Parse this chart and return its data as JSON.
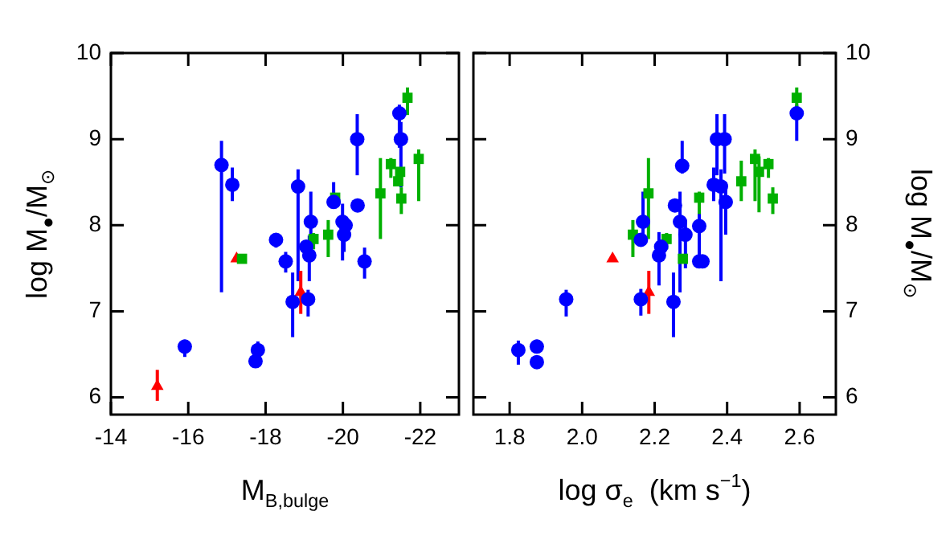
{
  "chart_data": [
    {
      "type": "scatter",
      "xlabel": "M$_{B,bulge}$",
      "ylabel": "log M$_{●}$/M$_{⊙}$",
      "xlim": [
        -14,
        -23
      ],
      "xticks": [
        -14,
        -16,
        -18,
        -20,
        -22
      ],
      "ylim": [
        5.8,
        10
      ],
      "yticks": [
        6,
        7,
        8,
        9,
        10
      ],
      "series": [
        {
          "type": "scatter",
          "marker": "circle",
          "color": "#0000ff",
          "x": [
            -16.86,
            -17.14,
            -15.91,
            -17.8,
            -17.74,
            -18.27,
            -18.52,
            -18.84,
            -18.7,
            -19.05,
            -19.13,
            -19.17,
            -19.1,
            -19.76,
            -19.99,
            -20.07,
            -20.03,
            -20.37,
            -20.38,
            -20.56,
            -21.46,
            -21.5
          ],
          "values": [
            8.7,
            8.47,
            6.59,
            6.55,
            6.42,
            7.83,
            7.58,
            8.45,
            7.11,
            7.75,
            7.65,
            8.04,
            7.14,
            8.27,
            8.04,
            8.0,
            7.89,
            9.0,
            8.23,
            7.58,
            9.3,
            9.0
          ],
          "errors": [
            [
              7.22,
              8.98
            ],
            [
              8.28,
              8.67
            ],
            [
              6.47,
              6.67
            ],
            [
              6.47,
              6.65
            ],
            null,
            [
              7.74,
              7.89
            ],
            [
              7.45,
              7.69
            ],
            [
              7.35,
              8.65
            ],
            [
              6.7,
              7.45
            ],
            null,
            [
              7.35,
              7.88
            ],
            [
              7.66,
              8.39
            ],
            [
              6.94,
              7.25
            ],
            [
              8.22,
              8.5
            ],
            [
              7.59,
              8.25
            ],
            null,
            [
              7.69,
              8.0
            ],
            [
              8.58,
              9.29
            ],
            null,
            [
              7.38,
              7.74
            ],
            [
              8.9,
              9.4
            ],
            [
              8.44,
              9.2
            ]
          ]
        },
        {
          "type": "scatter",
          "marker": "square",
          "color": "#00b000",
          "x": [
            -17.39,
            -19.24,
            -19.62,
            -19.8,
            -20.97,
            -21.24,
            -21.48,
            -21.43,
            -21.51,
            -21.67,
            -21.96
          ],
          "values": [
            7.61,
            7.84,
            7.89,
            8.32,
            8.37,
            8.71,
            8.62,
            8.51,
            8.31,
            9.48,
            8.77
          ],
          "errors": [
            null,
            [
              7.72,
              7.91
            ],
            [
              7.63,
              8.06
            ],
            null,
            [
              7.84,
              8.78
            ],
            [
              8.55,
              8.78
            ],
            null,
            null,
            [
              8.13,
              8.44
            ],
            [
              9.28,
              9.6
            ],
            [
              8.28,
              8.88
            ]
          ]
        },
        {
          "type": "scatter",
          "marker": "triangle",
          "color": "#ff0000",
          "x": [
            -15.2,
            -17.25,
            -18.91
          ],
          "values": [
            6.13,
            7.61,
            7.22
          ],
          "errors": [
            [
              5.96,
              6.32
            ],
            null,
            [
              6.97,
              7.47
            ]
          ]
        }
      ]
    },
    {
      "type": "scatter",
      "xlabel": "log σ$_{e}$  (km s$^{−1}$)",
      "y2label": "log M$_{●}$/M$_{⊙}$",
      "xlim": [
        1.7,
        2.7
      ],
      "xticks": [
        {
          "value": 1.8,
          "label": "1.8"
        },
        {
          "value": 2.0,
          "label": "2.0"
        },
        {
          "value": 2.2,
          "label": "2.2"
        },
        {
          "value": 2.4,
          "label": "2.4"
        },
        {
          "value": 2.6,
          "label": "2.6"
        }
      ],
      "y2lim": [
        5.8,
        10
      ],
      "y2ticks": [
        6,
        7,
        8,
        9,
        10
      ],
      "series": [
        {
          "type": "scatter",
          "axis": "y2",
          "marker": "circle",
          "color": "#0000ff",
          "x": [
            1.824,
            1.875,
            1.875,
            1.956,
            2.162,
            2.162,
            2.168,
            2.212,
            2.218,
            2.252,
            2.256,
            2.27,
            2.276,
            2.285,
            2.323,
            2.323,
            2.332,
            2.363,
            2.372,
            2.393,
            2.383,
            2.396,
            2.592
          ],
          "values": [
            6.55,
            6.59,
            6.41,
            7.14,
            7.14,
            7.83,
            8.04,
            7.65,
            7.75,
            7.11,
            8.23,
            8.04,
            8.69,
            7.89,
            7.99,
            7.58,
            7.58,
            8.47,
            9.0,
            9.0,
            8.45,
            8.27,
            9.3
          ],
          "errors": [
            [
              6.38,
              6.66
            ],
            [
              6.55,
              6.67
            ],
            null,
            [
              6.94,
              7.25
            ],
            [
              6.95,
              7.26
            ],
            null,
            [
              7.81,
              8.39
            ],
            [
              7.3,
              7.92
            ],
            null,
            [
              6.7,
              7.45
            ],
            null,
            [
              7.22,
              8.39
            ],
            [
              8.6,
              8.98
            ],
            [
              7.5,
              8.06
            ],
            [
              7.58,
              8.19
            ],
            null,
            null,
            [
              8.28,
              8.67
            ],
            [
              8.58,
              9.29
            ],
            [
              8.6,
              9.29
            ],
            [
              7.35,
              8.65
            ],
            [
              7.89,
              8.5
            ],
            [
              8.98,
              9.4
            ]
          ]
        },
        {
          "type": "scatter",
          "axis": "y2",
          "marker": "square",
          "color": "#00b000",
          "x": [
            2.14,
            2.183,
            2.233,
            2.278,
            2.323,
            2.439,
            2.477,
            2.488,
            2.514,
            2.526,
            2.592
          ],
          "values": [
            7.89,
            8.37,
            7.84,
            7.61,
            8.32,
            8.51,
            8.77,
            8.62,
            8.71,
            8.31,
            9.48
          ],
          "errors": [
            [
              7.63,
              8.06
            ],
            [
              7.84,
              8.78
            ],
            [
              7.72,
              7.91
            ],
            null,
            [
              8.13,
              8.39
            ],
            [
              8.28,
              8.75
            ],
            [
              8.28,
              8.88
            ],
            [
              8.15,
              8.8
            ],
            [
              8.55,
              8.78
            ],
            [
              8.13,
              8.44
            ],
            [
              9.28,
              9.6
            ]
          ]
        },
        {
          "type": "scatter",
          "axis": "y2",
          "marker": "triangle",
          "color": "#ff0000",
          "x": [
            2.084,
            2.184
          ],
          "values": [
            7.61,
            7.22
          ],
          "errors": [
            null,
            [
              6.97,
              7.47
            ]
          ]
        }
      ]
    }
  ]
}
